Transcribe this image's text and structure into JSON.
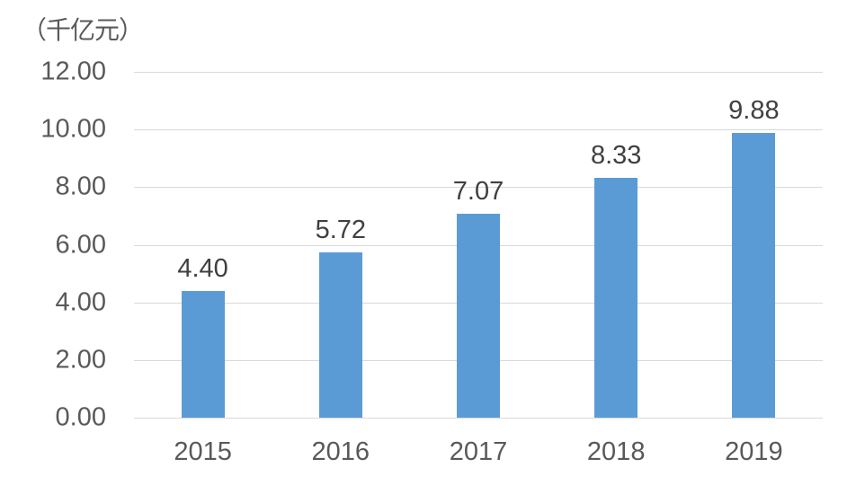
{
  "chart_data": {
    "type": "bar",
    "title": "（千亿元）",
    "categories": [
      "2015",
      "2016",
      "2017",
      "2018",
      "2019"
    ],
    "values": [
      4.4,
      5.72,
      7.07,
      8.33,
      9.88
    ],
    "value_labels": [
      "4.40",
      "5.72",
      "7.07",
      "8.33",
      "9.88"
    ],
    "y_ticks": [
      {
        "label": "12.00",
        "value": 12
      },
      {
        "label": "10.00",
        "value": 10
      },
      {
        "label": "8.00",
        "value": 8
      },
      {
        "label": "6.00",
        "value": 6
      },
      {
        "label": "4.00",
        "value": 4
      },
      {
        "label": "2.00",
        "value": 2
      },
      {
        "label": "0.00",
        "value": 0
      }
    ],
    "ylim": [
      0,
      12
    ],
    "xlabel": "",
    "ylabel": "（千亿元）",
    "grid": "horizontal",
    "legend": "none",
    "colors": {
      "bar": "#5B9BD5",
      "gridline": "#D9D9D9",
      "axis_text": "#595959",
      "data_label": "#404040",
      "background": "#FFFFFF"
    }
  }
}
